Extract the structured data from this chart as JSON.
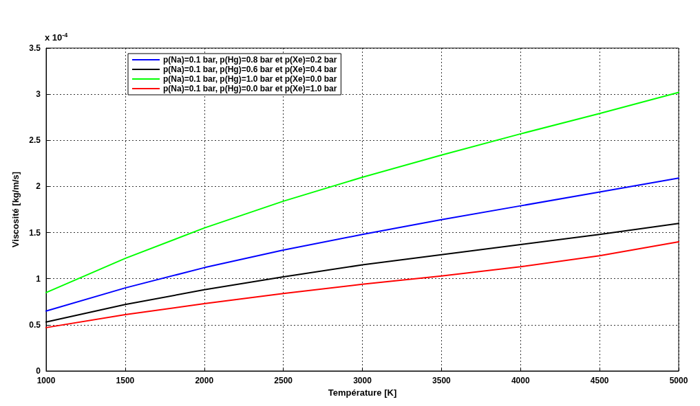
{
  "chart_data": {
    "type": "line",
    "xlabel": "Température [K]",
    "ylabel": "Viscosité [kg/m/s]",
    "annotations": [
      "x 10$^{-4}$"
    ],
    "x": [
      1000,
      1500,
      2000,
      2500,
      3000,
      3500,
      4000,
      4500,
      5000
    ],
    "series": [
      {
        "name": "p(Na)=0.1 bar, p(Hg)=0.8 bar et p(Xe)=0.2 bar",
        "color": "#0000ff",
        "values": [
          0.65,
          0.9,
          1.12,
          1.31,
          1.48,
          1.64,
          1.79,
          1.94,
          2.09
        ]
      },
      {
        "name": "p(Na)=0.1 bar, p(Hg)=0.6 bar et p(Xe)=0.4 bar",
        "color": "#000000",
        "values": [
          0.53,
          0.72,
          0.88,
          1.02,
          1.15,
          1.26,
          1.37,
          1.48,
          1.6
        ]
      },
      {
        "name": "p(Na)=0.1 bar, p(Hg)=1.0 bar et p(Xe)=0.0 bar",
        "color": "#00ff00",
        "values": [
          0.85,
          1.22,
          1.55,
          1.84,
          2.1,
          2.34,
          2.57,
          2.79,
          3.02
        ]
      },
      {
        "name": "p(Na)=0.1 bar, p(Hg)=0.0 bar et p(Xe)=1.0 bar",
        "color": "#ff0000",
        "values": [
          0.47,
          0.61,
          0.73,
          0.84,
          0.94,
          1.03,
          1.13,
          1.25,
          1.4
        ]
      }
    ],
    "xlim": [
      1000,
      5000
    ],
    "xticks": [
      1000,
      1500,
      2000,
      2500,
      3000,
      3500,
      4000,
      4500,
      5000
    ],
    "ylim": [
      0,
      3.5
    ],
    "yticks": [
      0,
      0.5,
      1,
      1.5,
      2,
      2.5,
      3,
      3.5
    ],
    "grid": true,
    "legend": "top left",
    "marker": "none",
    "line_style": "solid"
  }
}
